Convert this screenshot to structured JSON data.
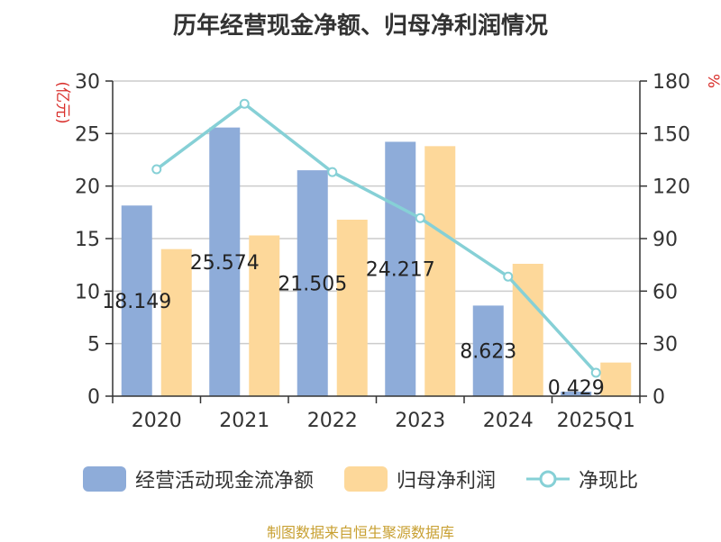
{
  "chart_data": {
    "type": "bar",
    "title": "历年经营现金净额、归母净利润情况",
    "categories": [
      "2020",
      "2021",
      "2022",
      "2023",
      "2024",
      "2025Q1"
    ],
    "series": [
      {
        "name": "经营活动现金流净额",
        "kind": "bar",
        "axis": "left",
        "color": "#8eacd9",
        "values": [
          18.149,
          25.574,
          21.505,
          24.217,
          8.623,
          0.429
        ],
        "data_labels": [
          "18.149",
          "25.574",
          "21.505",
          "24.217",
          "8.623",
          "0.429"
        ]
      },
      {
        "name": "归母净利润",
        "kind": "bar",
        "axis": "left",
        "color": "#fdd89a",
        "values": [
          14.0,
          15.3,
          16.8,
          23.8,
          12.6,
          3.2
        ]
      },
      {
        "name": "净现比",
        "kind": "line",
        "axis": "right",
        "color": "#86d0d6",
        "values": [
          129.6,
          167.0,
          128.0,
          101.7,
          68.3,
          13.4
        ]
      }
    ],
    "ylabel": "(亿元)",
    "y2label": "%",
    "ylim": [
      0,
      30
    ],
    "yticks": [
      "0",
      "5",
      "10",
      "15",
      "20",
      "25",
      "30"
    ],
    "y2lim": [
      0,
      180
    ],
    "y2ticks": [
      "0",
      "30",
      "60",
      "90",
      "120",
      "150",
      "180"
    ],
    "grid": true,
    "legend_position": "bottom"
  },
  "legend": {
    "items": [
      {
        "label": "经营活动现金流净额",
        "color": "#8eacd9",
        "icon": "bar-swatch"
      },
      {
        "label": "归母净利润",
        "color": "#fdd89a",
        "icon": "bar-swatch"
      },
      {
        "label": "净现比",
        "color": "#86d0d6",
        "icon": "line-marker"
      }
    ]
  },
  "footer": {
    "source": "制图数据来自恒生聚源数据库"
  },
  "colors": {
    "ylabel": "#d9302c",
    "axis": "#333333",
    "grid": "#cccccc",
    "source": "#c8a032"
  }
}
